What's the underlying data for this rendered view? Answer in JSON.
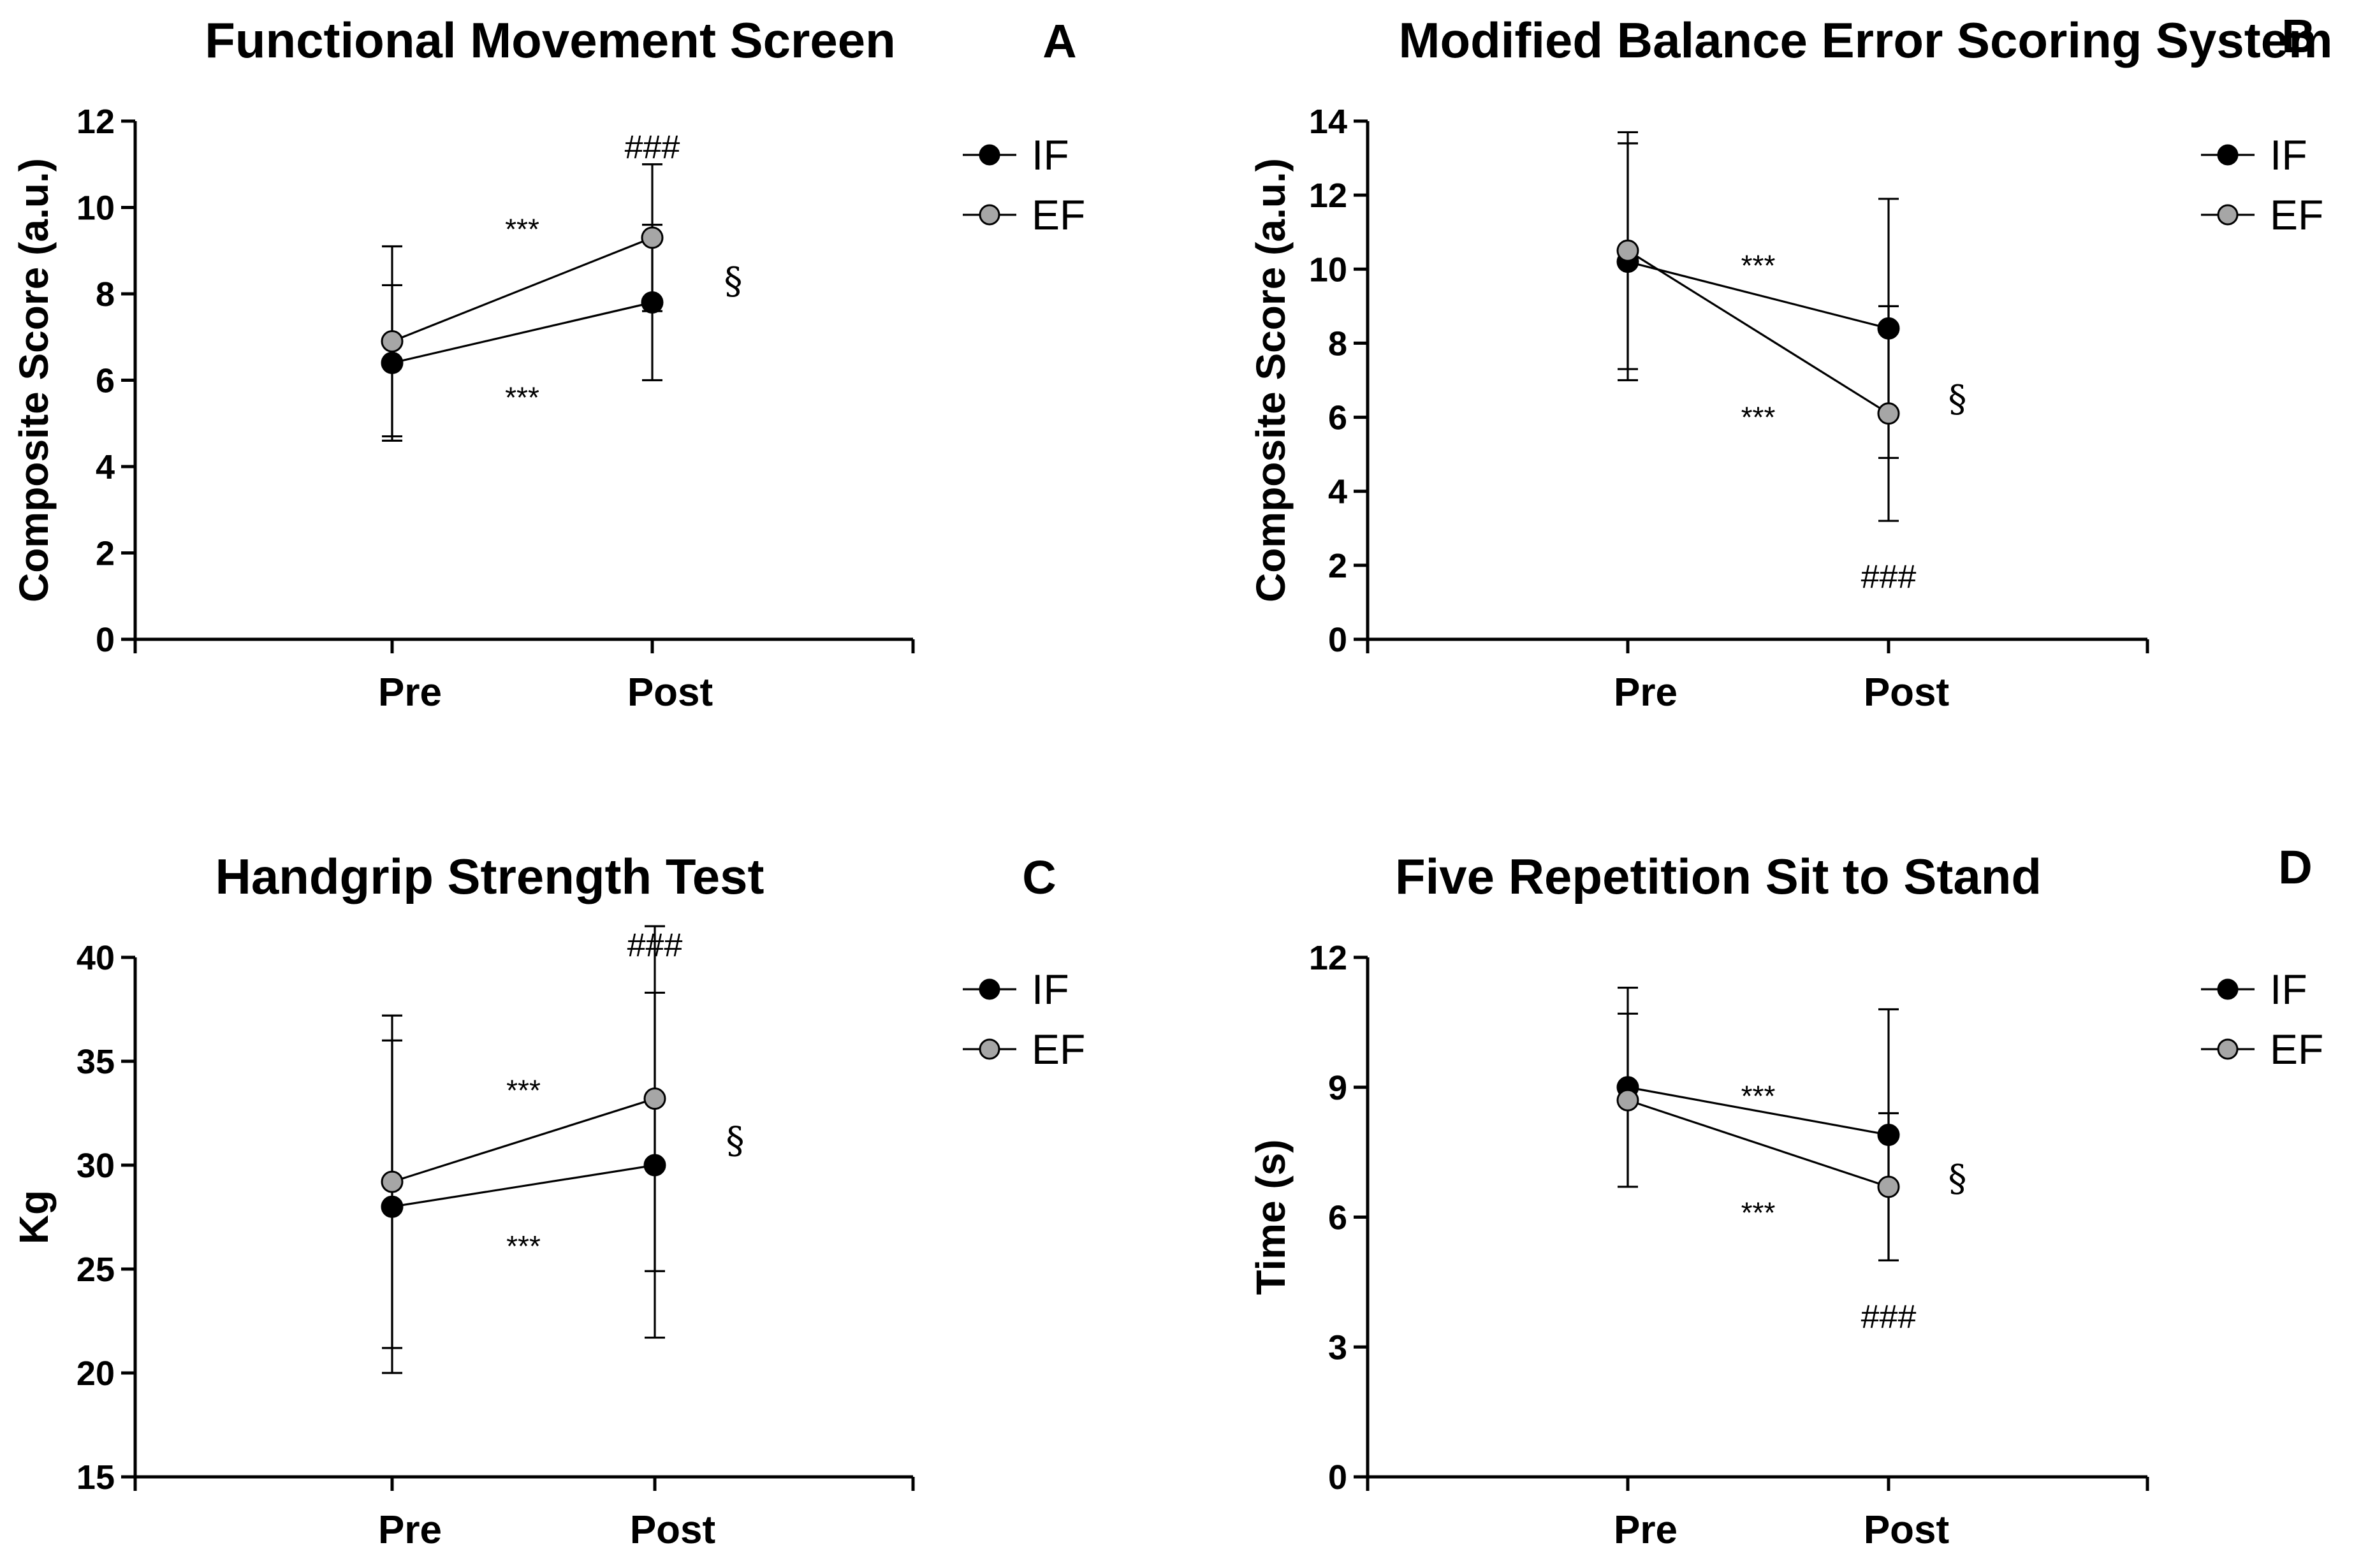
{
  "panel_letters": [
    "A",
    "B",
    "C",
    "D"
  ],
  "colors": {
    "IF": "#000000",
    "EF": "#a6a6a6",
    "axis": "#000000"
  },
  "chart_data": [
    {
      "type": "line",
      "title": "Functional Movement Screen",
      "letter": "A",
      "xlabel": "",
      "ylabel": "Composite Score (a.u.)",
      "categories": [
        "Pre",
        "Post"
      ],
      "ylim": [
        0,
        12
      ],
      "yticks": [
        0,
        2,
        4,
        6,
        8,
        10,
        12
      ],
      "ytick_labels": [
        "0",
        "2",
        "4",
        "6",
        "8",
        "10",
        "12"
      ],
      "legend": [
        "IF",
        "EF"
      ],
      "series": [
        {
          "name": "IF",
          "values": [
            6.4,
            7.8
          ],
          "err_low": [
            4.6,
            6.0
          ],
          "err_high": [
            8.2,
            9.6
          ]
        },
        {
          "name": "EF",
          "values": [
            6.9,
            9.3
          ],
          "err_low": [
            4.7,
            7.6
          ],
          "err_high": [
            9.1,
            11.0
          ]
        }
      ],
      "annotations": [
        {
          "text": "***",
          "between": "EF",
          "y": 9.5
        },
        {
          "text": "***",
          "between": "IF",
          "y": 5.6
        },
        {
          "text": "###",
          "at": "Post",
          "y": 11.4
        },
        {
          "text": "§",
          "side": "right",
          "y": 8.3
        }
      ]
    },
    {
      "type": "line",
      "title": "Modified Balance Error Scoring System",
      "letter": "B",
      "xlabel": "",
      "ylabel": "Composite Score (a.u.)",
      "categories": [
        "Pre",
        "Post"
      ],
      "ylim": [
        0,
        14
      ],
      "yticks": [
        0,
        2,
        4,
        6,
        8,
        10,
        12,
        14
      ],
      "ytick_labels": [
        "0",
        "2",
        "4",
        "6",
        "8",
        "10",
        "12",
        "14"
      ],
      "legend": [
        "IF",
        "EF"
      ],
      "series": [
        {
          "name": "IF",
          "values": [
            10.2,
            8.4
          ],
          "err_low": [
            7.0,
            4.9
          ],
          "err_high": [
            13.4,
            11.9
          ]
        },
        {
          "name": "EF",
          "values": [
            10.5,
            6.1
          ],
          "err_low": [
            7.3,
            3.2
          ],
          "err_high": [
            13.7,
            9.0
          ]
        }
      ],
      "annotations": [
        {
          "text": "***",
          "between": "IF",
          "y": 10.1
        },
        {
          "text": "***",
          "between": "EF",
          "y": 6.0
        },
        {
          "text": "###",
          "at": "Post",
          "y": 1.7
        },
        {
          "text": "§",
          "side": "right",
          "y": 6.5
        }
      ]
    },
    {
      "type": "line",
      "title": "Handgrip Strength Test",
      "letter": "C",
      "xlabel": "",
      "ylabel": "Kg",
      "categories": [
        "Pre",
        "Post"
      ],
      "ylim": [
        15,
        40
      ],
      "yticks": [
        15,
        20,
        25,
        30,
        35,
        40
      ],
      "ytick_labels": [
        "15",
        "20",
        "25",
        "30",
        "35",
        "40"
      ],
      "legend": [
        "IF",
        "EF"
      ],
      "series": [
        {
          "name": "IF",
          "values": [
            28.0,
            30.0
          ],
          "err_low": [
            20.0,
            21.7
          ],
          "err_high": [
            36.0,
            38.3
          ]
        },
        {
          "name": "EF",
          "values": [
            29.2,
            33.2
          ],
          "err_low": [
            21.2,
            24.9
          ],
          "err_high": [
            37.2,
            41.5
          ]
        }
      ],
      "annotations": [
        {
          "text": "***",
          "between": "EF",
          "y": 33.6
        },
        {
          "text": "***",
          "between": "IF",
          "y": 26.1
        },
        {
          "text": "###",
          "at": "Post",
          "y": 40.6
        },
        {
          "text": "§",
          "side": "right",
          "y": 31.2
        }
      ]
    },
    {
      "type": "line",
      "title": "Five Repetition Sit to Stand",
      "letter": "D",
      "xlabel": "",
      "ylabel": "Time (s)",
      "categories": [
        "Pre",
        "Post"
      ],
      "ylim": [
        0,
        12
      ],
      "yticks": [
        0,
        3,
        6,
        9,
        12
      ],
      "ytick_labels": [
        "0",
        "3",
        "6",
        "9",
        "12"
      ],
      "legend": [
        "IF",
        "EF"
      ],
      "series": [
        {
          "name": "IF",
          "values": [
            9.0,
            7.9
          ],
          "err_low": [
            6.7,
            5.0
          ],
          "err_high": [
            11.3,
            10.8
          ]
        },
        {
          "name": "EF",
          "values": [
            8.7,
            6.7
          ],
          "err_low": [
            6.7,
            5.0
          ],
          "err_high": [
            10.7,
            8.4
          ]
        }
      ],
      "annotations": [
        {
          "text": "***",
          "between": "IF",
          "y": 8.8
        },
        {
          "text": "***",
          "between": "EF",
          "y": 6.1
        },
        {
          "text": "###",
          "at": "Post",
          "y": 3.7
        },
        {
          "text": "§",
          "side": "right",
          "y": 6.9
        }
      ]
    }
  ]
}
